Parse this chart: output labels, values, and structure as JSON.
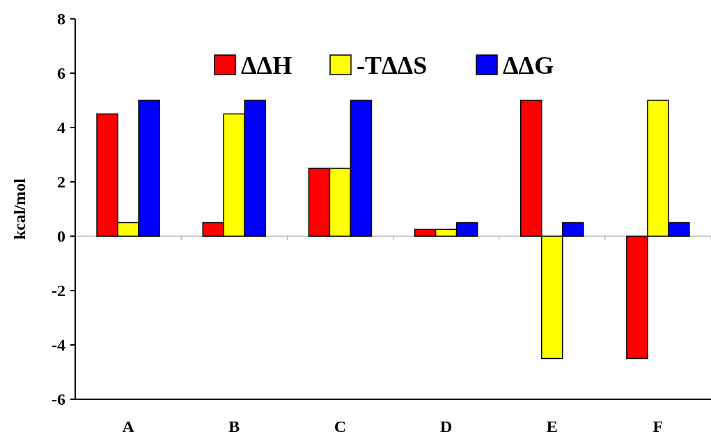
{
  "chart_data": {
    "type": "bar",
    "ylabel": "kcal/mol",
    "categories": [
      "A",
      "B",
      "C",
      "D",
      "E",
      "F"
    ],
    "series": [
      {
        "name": "ΔΔH",
        "color": "#ff0000",
        "values": [
          4.5,
          0.5,
          2.5,
          0.25,
          5,
          -4.5
        ]
      },
      {
        "name": "-TΔΔS",
        "color": "#ffff00",
        "values": [
          0.5,
          4.5,
          2.5,
          0.25,
          -4.5,
          5
        ]
      },
      {
        "name": "ΔΔG",
        "color": "#0000ff",
        "values": [
          5,
          5,
          5,
          0.5,
          0.5,
          0.5
        ]
      }
    ],
    "ylim": [
      -6,
      8
    ],
    "yticks": [
      -6,
      -4,
      -2,
      0,
      2,
      4,
      6,
      8
    ],
    "legend": "top",
    "ref_lines": [
      {
        "axis": "y",
        "value": 0,
        "color": "#999999"
      }
    ]
  }
}
